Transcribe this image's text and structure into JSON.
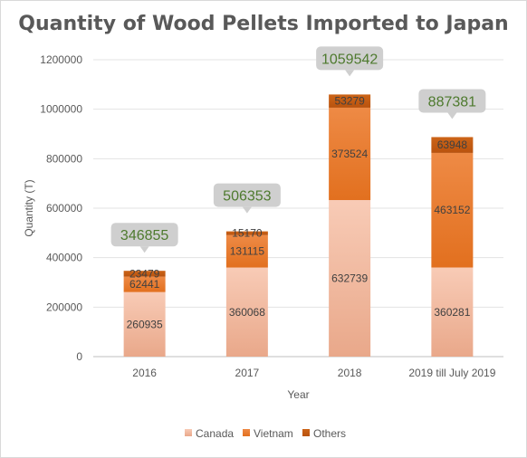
{
  "chart_data": {
    "type": "bar",
    "stacked": true,
    "title": "Quantity of Wood Pellets Imported to Japan",
    "xlabel": "Year",
    "ylabel": "Quantity (T)",
    "ylim": [
      0,
      1200000
    ],
    "yticks": [
      0,
      200000,
      400000,
      600000,
      800000,
      1000000,
      1200000
    ],
    "ytick_labels": [
      "0",
      "200000",
      "400000",
      "600000",
      "800000",
      "1000000",
      "1200000"
    ],
    "grid": true,
    "legend_position": "bottom",
    "categories": [
      "2016",
      "2017",
      "2018",
      "2019 till July 2019"
    ],
    "series": [
      {
        "name": "Canada",
        "color": "#f4b9a0",
        "values": [
          260935,
          360068,
          632739,
          360281
        ]
      },
      {
        "name": "Vietnam",
        "color": "#ed7d31",
        "values": [
          62441,
          131115,
          373524,
          463152
        ]
      },
      {
        "name": "Others",
        "color": "#c55a11",
        "values": [
          23479,
          15170,
          53279,
          63948
        ]
      }
    ],
    "totals": [
      346855,
      506353,
      1059542,
      887381
    ]
  }
}
